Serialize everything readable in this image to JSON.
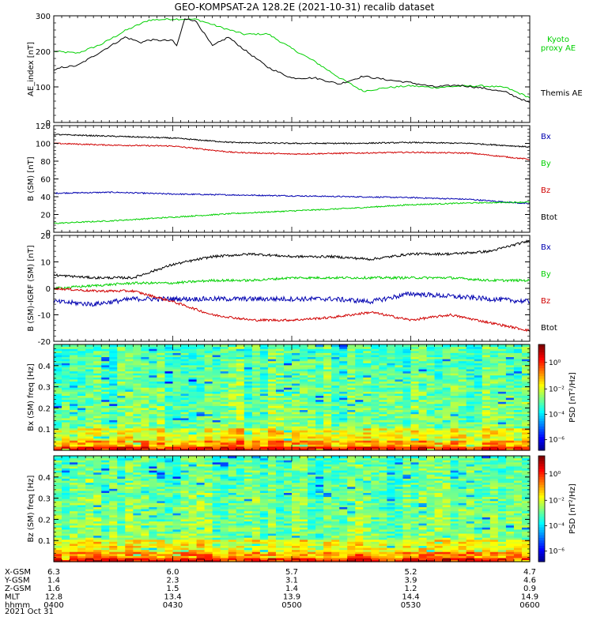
{
  "title": "GEO-KOMPSAT-2A 128.2E (2021-10-31) recalib dataset",
  "chart_data": [
    {
      "type": "line",
      "ylabel": "AE_index [nT]",
      "ylim": [
        0,
        300
      ],
      "yticks": [
        0,
        100,
        200,
        300
      ],
      "xlim": [
        0,
        120
      ],
      "series": [
        {
          "name": "Kyoto proxy AE",
          "color": "#00d000",
          "x": [
            0,
            6,
            12,
            18,
            24,
            30,
            36,
            42,
            48,
            54,
            60,
            66,
            72,
            78,
            84,
            90,
            96,
            102,
            108,
            114,
            120
          ],
          "y": [
            200,
            195,
            220,
            258,
            288,
            291,
            290,
            268,
            248,
            249,
            208,
            170,
            126,
            88,
            98,
            103,
            98,
            102,
            103,
            98,
            70
          ]
        },
        {
          "name": "Themis AE",
          "color": "#000000",
          "x": [
            0,
            2,
            6,
            12,
            18,
            22,
            24,
            30,
            31,
            33,
            34,
            36,
            40,
            44,
            48,
            54,
            60,
            66,
            72,
            78,
            84,
            90,
            96,
            102,
            108,
            114,
            120
          ],
          "y": [
            145,
            155,
            160,
            200,
            240,
            225,
            232,
            230,
            215,
            290,
            292,
            283,
            215,
            240,
            205,
            155,
            125,
            125,
            108,
            130,
            120,
            112,
            100,
            105,
            97,
            85,
            55
          ]
        }
      ]
    },
    {
      "type": "line",
      "ylabel": "B (SM) [nT]",
      "ylim": [
        0,
        120
      ],
      "yticks": [
        0,
        20,
        40,
        60,
        80,
        100,
        120
      ],
      "xlim": [
        0,
        120
      ],
      "series": [
        {
          "name": "Bx",
          "color": "#0000b0",
          "x": [
            0,
            15,
            30,
            45,
            60,
            75,
            90,
            105,
            120
          ],
          "y": [
            44,
            45,
            43,
            42,
            41,
            40,
            39,
            37,
            32
          ]
        },
        {
          "name": "By",
          "color": "#00d000",
          "x": [
            0,
            15,
            30,
            45,
            60,
            75,
            90,
            105,
            120
          ],
          "y": [
            10,
            13,
            17,
            21,
            24,
            27,
            31,
            33,
            34
          ]
        },
        {
          "name": "Bz",
          "color": "#d00000",
          "x": [
            0,
            15,
            30,
            45,
            60,
            75,
            90,
            105,
            120
          ],
          "y": [
            100,
            98,
            97,
            90,
            88,
            89,
            90,
            89,
            82
          ]
        },
        {
          "name": "Btot",
          "color": "#000000",
          "x": [
            0,
            15,
            30,
            45,
            60,
            75,
            90,
            105,
            120
          ],
          "y": [
            110,
            108,
            106,
            101,
            100,
            100,
            101,
            100,
            96
          ]
        }
      ]
    },
    {
      "type": "line",
      "ylabel": "B (SM)-IGRF (SM) [nT]",
      "ylim": [
        -20,
        20
      ],
      "yticks": [
        -20,
        -10,
        0,
        10,
        20
      ],
      "xlim": [
        0,
        120
      ],
      "series": [
        {
          "name": "Bx",
          "color": "#0000b0",
          "x": [
            0,
            10,
            20,
            30,
            40,
            50,
            60,
            70,
            80,
            90,
            100,
            110,
            120
          ],
          "y": [
            -5,
            -6,
            -4,
            -4,
            -4,
            -4,
            -4,
            -4,
            -5,
            -2,
            -3,
            -4,
            -5
          ]
        },
        {
          "name": "By",
          "color": "#00d000",
          "x": [
            0,
            10,
            20,
            30,
            40,
            50,
            60,
            70,
            80,
            90,
            100,
            110,
            120
          ],
          "y": [
            0,
            1,
            2,
            2,
            3,
            3,
            4,
            4,
            4,
            4,
            4,
            3,
            3
          ]
        },
        {
          "name": "Bz",
          "color": "#d00000",
          "x": [
            0,
            10,
            20,
            30,
            40,
            50,
            60,
            70,
            80,
            90,
            100,
            110,
            120
          ],
          "y": [
            0,
            -1,
            -1,
            -5,
            -10,
            -12,
            -12,
            -11,
            -9,
            -12,
            -10,
            -13,
            -16
          ]
        },
        {
          "name": "Btot",
          "color": "#000000",
          "x": [
            0,
            10,
            20,
            30,
            40,
            50,
            60,
            70,
            80,
            90,
            100,
            110,
            120
          ],
          "y": [
            5,
            4,
            4,
            9,
            12,
            13,
            12,
            12,
            11,
            13,
            13,
            14,
            18
          ]
        }
      ]
    },
    {
      "type": "heatmap",
      "ylabel": "Bx (SM) freq [Hz]",
      "ylim": [
        0,
        0.5
      ],
      "yticks": [
        0.1,
        0.2,
        0.3,
        0.4
      ],
      "colorbar_label": "PSD [nT²/Hz]",
      "colorbar_ticks": [
        "10⁰",
        "10⁻²",
        "10⁻⁴",
        "10⁻⁶"
      ]
    },
    {
      "type": "heatmap",
      "ylabel": "Bz (SM) freq [Hz]",
      "ylim": [
        0,
        0.5
      ],
      "yticks": [
        0.1,
        0.2,
        0.3,
        0.4
      ],
      "colorbar_label": "PSD [nT²/Hz]",
      "colorbar_ticks": [
        "10⁰",
        "10⁻²",
        "10⁻⁴",
        "10⁻⁶"
      ]
    }
  ],
  "xaxis": {
    "rows": [
      {
        "label": "X-GSM",
        "values": [
          "6.3",
          "6.0",
          "5.7",
          "5.2",
          "4.7"
        ]
      },
      {
        "label": "Y-GSM",
        "values": [
          "1.4",
          "2.3",
          "3.1",
          "3.9",
          "4.6"
        ]
      },
      {
        "label": "Z-GSM",
        "values": [
          "1.6",
          "1.5",
          "1.4",
          "1.2",
          "0.9"
        ]
      },
      {
        "label": "MLT",
        "values": [
          "12.8",
          "13.4",
          "13.9",
          "14.4",
          "14.9"
        ]
      },
      {
        "label": "hhmm",
        "values": [
          "0400",
          "0430",
          "0500",
          "0530",
          "0600"
        ]
      }
    ],
    "date": "2021 Oct 31"
  }
}
